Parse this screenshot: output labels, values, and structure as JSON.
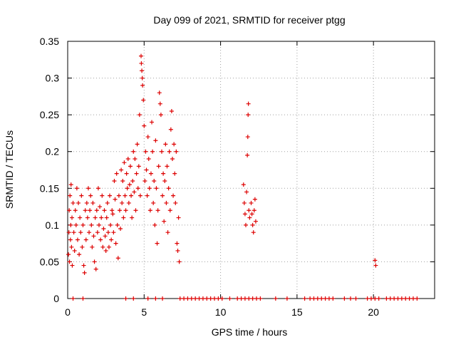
{
  "chart_data": {
    "type": "scatter",
    "title": "Day 099 of 2021, SRMTID for receiver ptgg",
    "xlabel": "GPS time / hours",
    "ylabel": "SRMTID / TECUs",
    "xlim": [
      0,
      24
    ],
    "ylim": [
      0,
      0.35
    ],
    "x_ticks": [
      0,
      5,
      10,
      15,
      20
    ],
    "y_ticks": [
      0,
      0.05,
      0.1,
      0.15,
      0.2,
      0.25,
      0.3,
      0.35
    ],
    "x_tick_labels": [
      "0",
      "5",
      "10",
      "15",
      "20"
    ],
    "y_tick_labels": [
      "0",
      "0.05",
      "0.1",
      "0.15",
      "0.2",
      "0.25",
      "0.3",
      "0.35"
    ],
    "grid": true,
    "marker": "+",
    "color": "#dd0000",
    "series": [
      {
        "name": "SRMTID",
        "points": [
          [
            0.05,
            0.06
          ],
          [
            0.08,
            0.09
          ],
          [
            0.1,
            0.12
          ],
          [
            0.12,
            0.05
          ],
          [
            0.15,
            0.14
          ],
          [
            0.18,
            0.08
          ],
          [
            0.2,
            0.1
          ],
          [
            0.22,
            0.155
          ],
          [
            0.25,
            0.07
          ],
          [
            0.28,
            0.11
          ],
          [
            0.3,
            0.045
          ],
          [
            0.35,
            0.13
          ],
          [
            0.4,
            0.09
          ],
          [
            0.45,
            0.065
          ],
          [
            0.5,
            0.12
          ],
          [
            0.55,
            0.1
          ],
          [
            0.6,
            0.15
          ],
          [
            0.65,
            0.08
          ],
          [
            0.7,
            0.13
          ],
          [
            0.75,
            0.06
          ],
          [
            0.8,
            0.11
          ],
          [
            0.85,
            0.09
          ],
          [
            0.9,
            0.14
          ],
          [
            0.95,
            0.07
          ],
          [
            1.0,
            0.1
          ],
          [
            1.05,
            0.045
          ],
          [
            1.1,
            0.035
          ],
          [
            1.15,
            0.12
          ],
          [
            1.2,
            0.08
          ],
          [
            1.25,
            0.13
          ],
          [
            1.3,
            0.11
          ],
          [
            1.35,
            0.15
          ],
          [
            1.4,
            0.09
          ],
          [
            1.45,
            0.12
          ],
          [
            1.5,
            0.14
          ],
          [
            1.55,
            0.1
          ],
          [
            1.6,
            0.07
          ],
          [
            1.65,
            0.13
          ],
          [
            1.7,
            0.085
          ],
          [
            1.75,
            0.05
          ],
          [
            1.8,
            0.11
          ],
          [
            1.85,
            0.04
          ],
          [
            1.9,
            0.12
          ],
          [
            1.95,
            0.09
          ],
          [
            2.0,
            0.15
          ],
          [
            2.05,
            0.1
          ],
          [
            2.1,
            0.125
          ],
          [
            2.15,
            0.08
          ],
          [
            2.2,
            0.11
          ],
          [
            2.25,
            0.14
          ],
          [
            2.3,
            0.07
          ],
          [
            2.35,
            0.095
          ],
          [
            2.4,
            0.12
          ],
          [
            2.45,
            0.085
          ],
          [
            2.5,
            0.065
          ],
          [
            2.55,
            0.11
          ],
          [
            2.6,
            0.13
          ],
          [
            2.65,
            0.09
          ],
          [
            2.7,
            0.07
          ],
          [
            2.75,
            0.14
          ],
          [
            2.8,
            0.1
          ],
          [
            2.85,
            0.08
          ],
          [
            2.9,
            0.12
          ],
          [
            2.95,
            0.115
          ],
          [
            3.0,
            0.09
          ],
          [
            3.05,
            0.16
          ],
          [
            3.1,
            0.135
          ],
          [
            3.15,
            0.075
          ],
          [
            3.2,
            0.17
          ],
          [
            3.25,
            0.1
          ],
          [
            3.3,
            0.055
          ],
          [
            3.35,
            0.14
          ],
          [
            3.4,
            0.12
          ],
          [
            3.45,
            0.095
          ],
          [
            3.5,
            0.175
          ],
          [
            3.55,
            0.13
          ],
          [
            3.6,
            0.16
          ],
          [
            3.65,
            0.11
          ],
          [
            3.7,
            0.185
          ],
          [
            3.75,
            0.14
          ],
          [
            3.8,
            0.12
          ],
          [
            3.85,
            0.17
          ],
          [
            3.9,
            0.15
          ],
          [
            3.95,
            0.19
          ],
          [
            4.0,
            0.13
          ],
          [
            4.05,
            0.155
          ],
          [
            4.1,
            0.18
          ],
          [
            4.15,
            0.14
          ],
          [
            4.2,
            0.11
          ],
          [
            4.25,
            0.16
          ],
          [
            4.3,
            0.2
          ],
          [
            4.35,
            0.145
          ],
          [
            4.4,
            0.19
          ],
          [
            4.45,
            0.12
          ],
          [
            4.5,
            0.17
          ],
          [
            4.55,
            0.21
          ],
          [
            4.6,
            0.15
          ],
          [
            4.65,
            0.18
          ],
          [
            4.7,
            0.25
          ],
          [
            4.75,
            0.14
          ],
          [
            4.8,
            0.33
          ],
          [
            4.82,
            0.32
          ],
          [
            4.85,
            0.31
          ],
          [
            4.88,
            0.3
          ],
          [
            4.9,
            0.29
          ],
          [
            4.95,
            0.27
          ],
          [
            5.0,
            0.235
          ],
          [
            5.05,
            0.16
          ],
          [
            5.1,
            0.2
          ],
          [
            5.15,
            0.175
          ],
          [
            5.2,
            0.14
          ],
          [
            5.25,
            0.22
          ],
          [
            5.3,
            0.19
          ],
          [
            5.35,
            0.15
          ],
          [
            5.4,
            0.12
          ],
          [
            5.45,
            0.17
          ],
          [
            5.5,
            0.24
          ],
          [
            5.55,
            0.2
          ],
          [
            5.6,
            0.13
          ],
          [
            5.65,
            0.16
          ],
          [
            5.7,
            0.1
          ],
          [
            5.75,
            0.215
          ],
          [
            5.8,
            0.15
          ],
          [
            5.85,
            0.075
          ],
          [
            5.9,
            0.12
          ],
          [
            5.95,
            0.18
          ],
          [
            6.0,
            0.28
          ],
          [
            6.05,
            0.265
          ],
          [
            6.1,
            0.25
          ],
          [
            6.15,
            0.2
          ],
          [
            6.2,
            0.14
          ],
          [
            6.25,
            0.17
          ],
          [
            6.3,
            0.105
          ],
          [
            6.35,
            0.16
          ],
          [
            6.4,
            0.21
          ],
          [
            6.45,
            0.13
          ],
          [
            6.5,
            0.18
          ],
          [
            6.55,
            0.09
          ],
          [
            6.6,
            0.15
          ],
          [
            6.65,
            0.2
          ],
          [
            6.7,
            0.12
          ],
          [
            6.75,
            0.23
          ],
          [
            6.8,
            0.255
          ],
          [
            6.85,
            0.19
          ],
          [
            6.9,
            0.14
          ],
          [
            6.95,
            0.21
          ],
          [
            7.0,
            0.17
          ],
          [
            7.05,
            0.13
          ],
          [
            7.1,
            0.2
          ],
          [
            7.15,
            0.075
          ],
          [
            7.2,
            0.065
          ],
          [
            7.25,
            0.11
          ],
          [
            7.3,
            0.05
          ],
          [
            11.5,
            0.155
          ],
          [
            11.55,
            0.13
          ],
          [
            11.6,
            0.115
          ],
          [
            11.65,
            0.1
          ],
          [
            11.7,
            0.145
          ],
          [
            11.75,
            0.195
          ],
          [
            11.78,
            0.22
          ],
          [
            11.8,
            0.25
          ],
          [
            11.82,
            0.265
          ],
          [
            11.85,
            0.12
          ],
          [
            11.9,
            0.11
          ],
          [
            12.0,
            0.13
          ],
          [
            12.05,
            0.115
          ],
          [
            12.1,
            0.1
          ],
          [
            12.15,
            0.09
          ],
          [
            12.2,
            0.12
          ],
          [
            12.25,
            0.135
          ],
          [
            12.3,
            0.105
          ],
          [
            20.1,
            0.052
          ],
          [
            20.15,
            0.045
          ],
          [
            0.35,
            0
          ],
          [
            1.0,
            0
          ],
          [
            3.8,
            0
          ],
          [
            4.3,
            0
          ],
          [
            5.25,
            0
          ],
          [
            5.75,
            0
          ],
          [
            6.2,
            0
          ],
          [
            7.35,
            0
          ],
          [
            7.6,
            0
          ],
          [
            7.85,
            0
          ],
          [
            8.1,
            0
          ],
          [
            8.35,
            0
          ],
          [
            8.6,
            0
          ],
          [
            8.85,
            0
          ],
          [
            9.1,
            0
          ],
          [
            9.35,
            0
          ],
          [
            9.6,
            0
          ],
          [
            9.85,
            0
          ],
          [
            10.1,
            0
          ],
          [
            10.6,
            0
          ],
          [
            11.1,
            0
          ],
          [
            11.35,
            0
          ],
          [
            11.6,
            0
          ],
          [
            11.85,
            0
          ],
          [
            12.1,
            0
          ],
          [
            12.35,
            0
          ],
          [
            12.6,
            0
          ],
          [
            13.6,
            0
          ],
          [
            14.35,
            0
          ],
          [
            15.5,
            0
          ],
          [
            15.85,
            0
          ],
          [
            16.1,
            0
          ],
          [
            16.35,
            0
          ],
          [
            16.6,
            0
          ],
          [
            16.85,
            0
          ],
          [
            17.1,
            0
          ],
          [
            17.35,
            0
          ],
          [
            18.1,
            0
          ],
          [
            18.5,
            0
          ],
          [
            18.85,
            0
          ],
          [
            19.6,
            0
          ],
          [
            19.85,
            0
          ],
          [
            20.1,
            0
          ],
          [
            20.35,
            0
          ],
          [
            20.85,
            0
          ],
          [
            21.1,
            0
          ],
          [
            21.35,
            0
          ],
          [
            21.6,
            0
          ],
          [
            21.85,
            0
          ],
          [
            22.1,
            0
          ],
          [
            22.35,
            0
          ],
          [
            22.6,
            0
          ],
          [
            22.85,
            0
          ]
        ]
      }
    ]
  }
}
